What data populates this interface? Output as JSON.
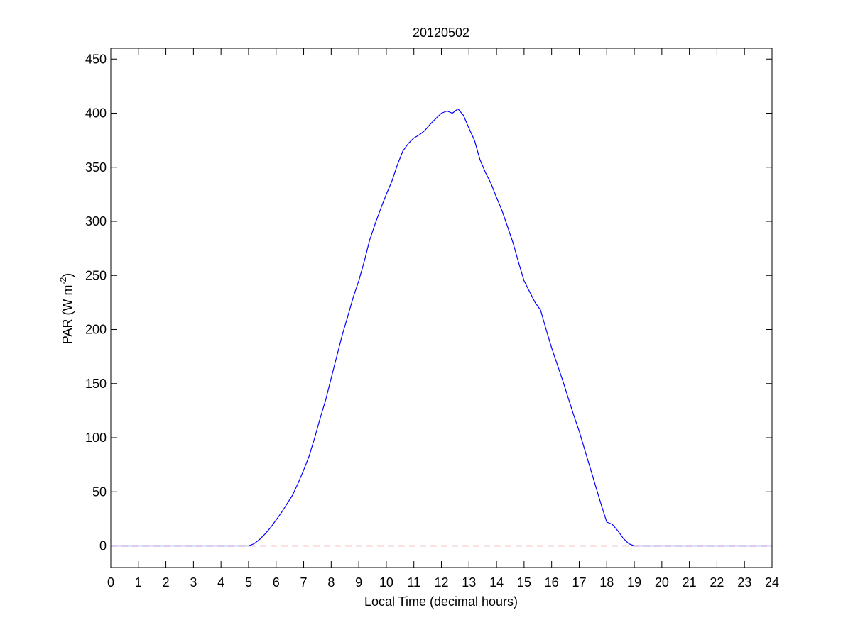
{
  "chart_data": {
    "type": "line",
    "title": "20120502",
    "xlabel": "Local Time (decimal hours)",
    "ylabel": {
      "text": "PAR (W m",
      "superscript": "-2",
      "suffix": ")"
    },
    "xlim": [
      0,
      24
    ],
    "ylim": [
      -20,
      460
    ],
    "x_ticks": [
      0,
      1,
      2,
      3,
      4,
      5,
      6,
      7,
      8,
      9,
      10,
      11,
      12,
      13,
      14,
      15,
      16,
      17,
      18,
      19,
      20,
      21,
      22,
      23,
      24
    ],
    "y_ticks": [
      0,
      50,
      100,
      150,
      200,
      250,
      300,
      350,
      400,
      450
    ],
    "grid": false,
    "colors": {
      "series": "#0000ff",
      "zero_line": "#d42020",
      "axes": "#000000"
    },
    "series": [
      {
        "x": [
          0,
          1,
          2,
          3,
          4,
          4.8,
          5.0,
          5.2,
          5.4,
          5.6,
          5.8,
          6.0,
          6.2,
          6.4,
          6.6,
          6.8,
          7.0,
          7.2,
          7.4,
          7.6,
          7.8,
          8.0,
          8.2,
          8.4,
          8.6,
          8.8,
          9.0,
          9.2,
          9.4,
          9.6,
          9.8,
          10.0,
          10.2,
          10.4,
          10.6,
          10.8,
          11.0,
          11.2,
          11.4,
          11.6,
          11.8,
          12.0,
          12.2,
          12.4,
          12.6,
          12.8,
          13.0,
          13.2,
          13.4,
          13.6,
          13.8,
          14.0,
          14.2,
          14.4,
          14.6,
          14.8,
          15.0,
          15.2,
          15.4,
          15.6,
          15.8,
          16.0,
          16.2,
          16.4,
          16.6,
          16.8,
          17.0,
          17.2,
          17.4,
          17.6,
          17.8,
          18.0,
          18.2,
          18.4,
          18.6,
          18.8,
          19.0,
          19.2,
          19.4,
          20,
          21,
          22,
          23,
          24
        ],
        "y": [
          0,
          0,
          0,
          0,
          0,
          0,
          0,
          2,
          6,
          11,
          17,
          24,
          31,
          39,
          47,
          58,
          70,
          83,
          100,
          118,
          135,
          155,
          175,
          195,
          212,
          230,
          245,
          263,
          283,
          298,
          312,
          325,
          337,
          352,
          365,
          372,
          377,
          380,
          384,
          390,
          395,
          400,
          402,
          400,
          404,
          398,
          386,
          375,
          357,
          345,
          335,
          322,
          310,
          295,
          280,
          262,
          245,
          235,
          225,
          218,
          200,
          183,
          168,
          153,
          137,
          121,
          106,
          89,
          72,
          55,
          38,
          22,
          20,
          14,
          7,
          2,
          0,
          0,
          0,
          0,
          0,
          0,
          0,
          0
        ]
      }
    ]
  }
}
